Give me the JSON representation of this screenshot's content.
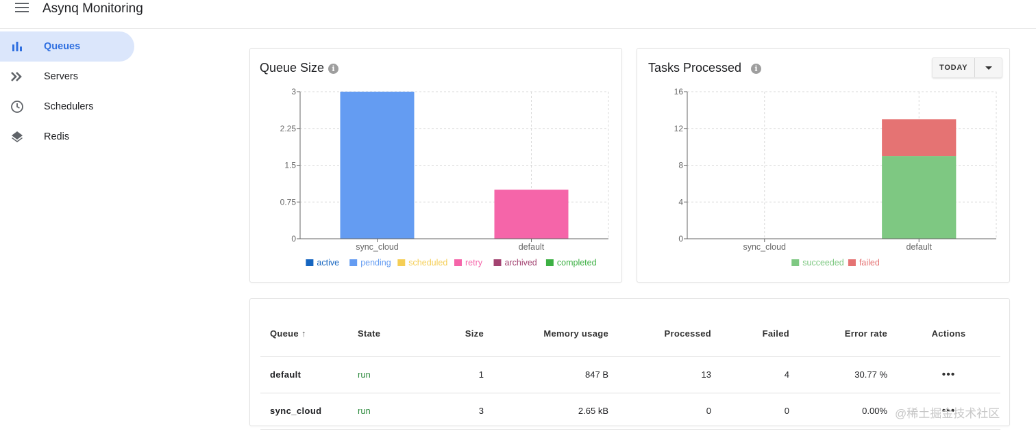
{
  "app": {
    "title": "Asynq Monitoring"
  },
  "sidebar": {
    "items": [
      {
        "label": "Queues",
        "icon": "bar-chart-icon",
        "active": true
      },
      {
        "label": "Servers",
        "icon": "double-chevron-icon",
        "active": false
      },
      {
        "label": "Schedulers",
        "icon": "clock-icon",
        "active": false
      },
      {
        "label": "Redis",
        "icon": "layers-icon",
        "active": false
      }
    ]
  },
  "queue_size_card": {
    "title": "Queue Size"
  },
  "tasks_processed_card": {
    "title": "Tasks Processed",
    "range_button": "TODAY"
  },
  "chart_data": [
    {
      "type": "bar",
      "title": "Queue Size",
      "categories": [
        "sync_cloud",
        "default"
      ],
      "series": [
        {
          "name": "active",
          "color": "#1565c0",
          "values": [
            0,
            0
          ]
        },
        {
          "name": "pending",
          "color": "#649cf2",
          "values": [
            3,
            0
          ]
        },
        {
          "name": "scheduled",
          "color": "#f5ce55",
          "values": [
            0,
            0
          ]
        },
        {
          "name": "retry",
          "color": "#f565a9",
          "values": [
            0,
            1
          ]
        },
        {
          "name": "archived",
          "color": "#a34371",
          "values": [
            0,
            0
          ]
        },
        {
          "name": "completed",
          "color": "#3cb043",
          "values": [
            0,
            0
          ]
        }
      ],
      "stacked": true,
      "ylim": [
        0,
        3
      ],
      "yticks": [
        "0",
        "0.75",
        "1.5",
        "2.25",
        "3"
      ],
      "grid": true,
      "legend": "bottom"
    },
    {
      "type": "bar",
      "title": "Tasks Processed",
      "categories": [
        "sync_cloud",
        "default"
      ],
      "series": [
        {
          "name": "succeeded",
          "color": "#7ec882",
          "values": [
            0,
            9
          ]
        },
        {
          "name": "failed",
          "color": "#e57373",
          "values": [
            0,
            4
          ]
        }
      ],
      "stacked": true,
      "ylim": [
        0,
        16
      ],
      "yticks": [
        "0",
        "4",
        "8",
        "12",
        "16"
      ],
      "grid": true,
      "legend": "bottom"
    }
  ],
  "table": {
    "headers": {
      "queue": "Queue",
      "state": "State",
      "size": "Size",
      "memory": "Memory usage",
      "processed": "Processed",
      "failed": "Failed",
      "error_rate": "Error rate",
      "actions": "Actions"
    },
    "rows": [
      {
        "queue": "default",
        "state": "run",
        "size": "1",
        "memory": "847 B",
        "processed": "13",
        "failed": "4",
        "error_rate": "30.77 %"
      },
      {
        "queue": "sync_cloud",
        "state": "run",
        "size": "3",
        "memory": "2.65 kB",
        "processed": "0",
        "failed": "0",
        "error_rate": "0.00%"
      }
    ]
  },
  "watermark": "@稀土掘金技术社区"
}
